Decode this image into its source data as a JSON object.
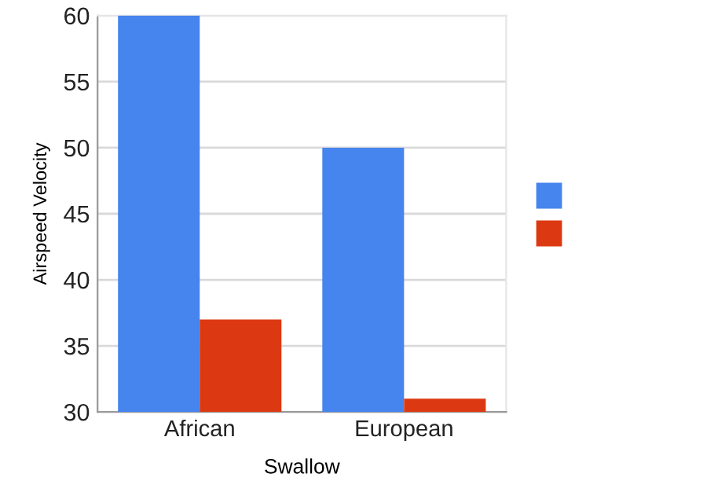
{
  "chart_data": {
    "type": "bar",
    "xlabel": "Swallow",
    "ylabel": "Airspeed Velocity",
    "categories": [
      "African",
      "European"
    ],
    "series": [
      {
        "color": "#4684ee",
        "values": [
          60,
          50
        ]
      },
      {
        "color": "#dc3912",
        "values": [
          37,
          31
        ]
      }
    ],
    "ylim": [
      30,
      60
    ],
    "yticks": [
      30,
      35,
      40,
      45,
      50,
      55,
      60
    ],
    "grid": "y"
  }
}
